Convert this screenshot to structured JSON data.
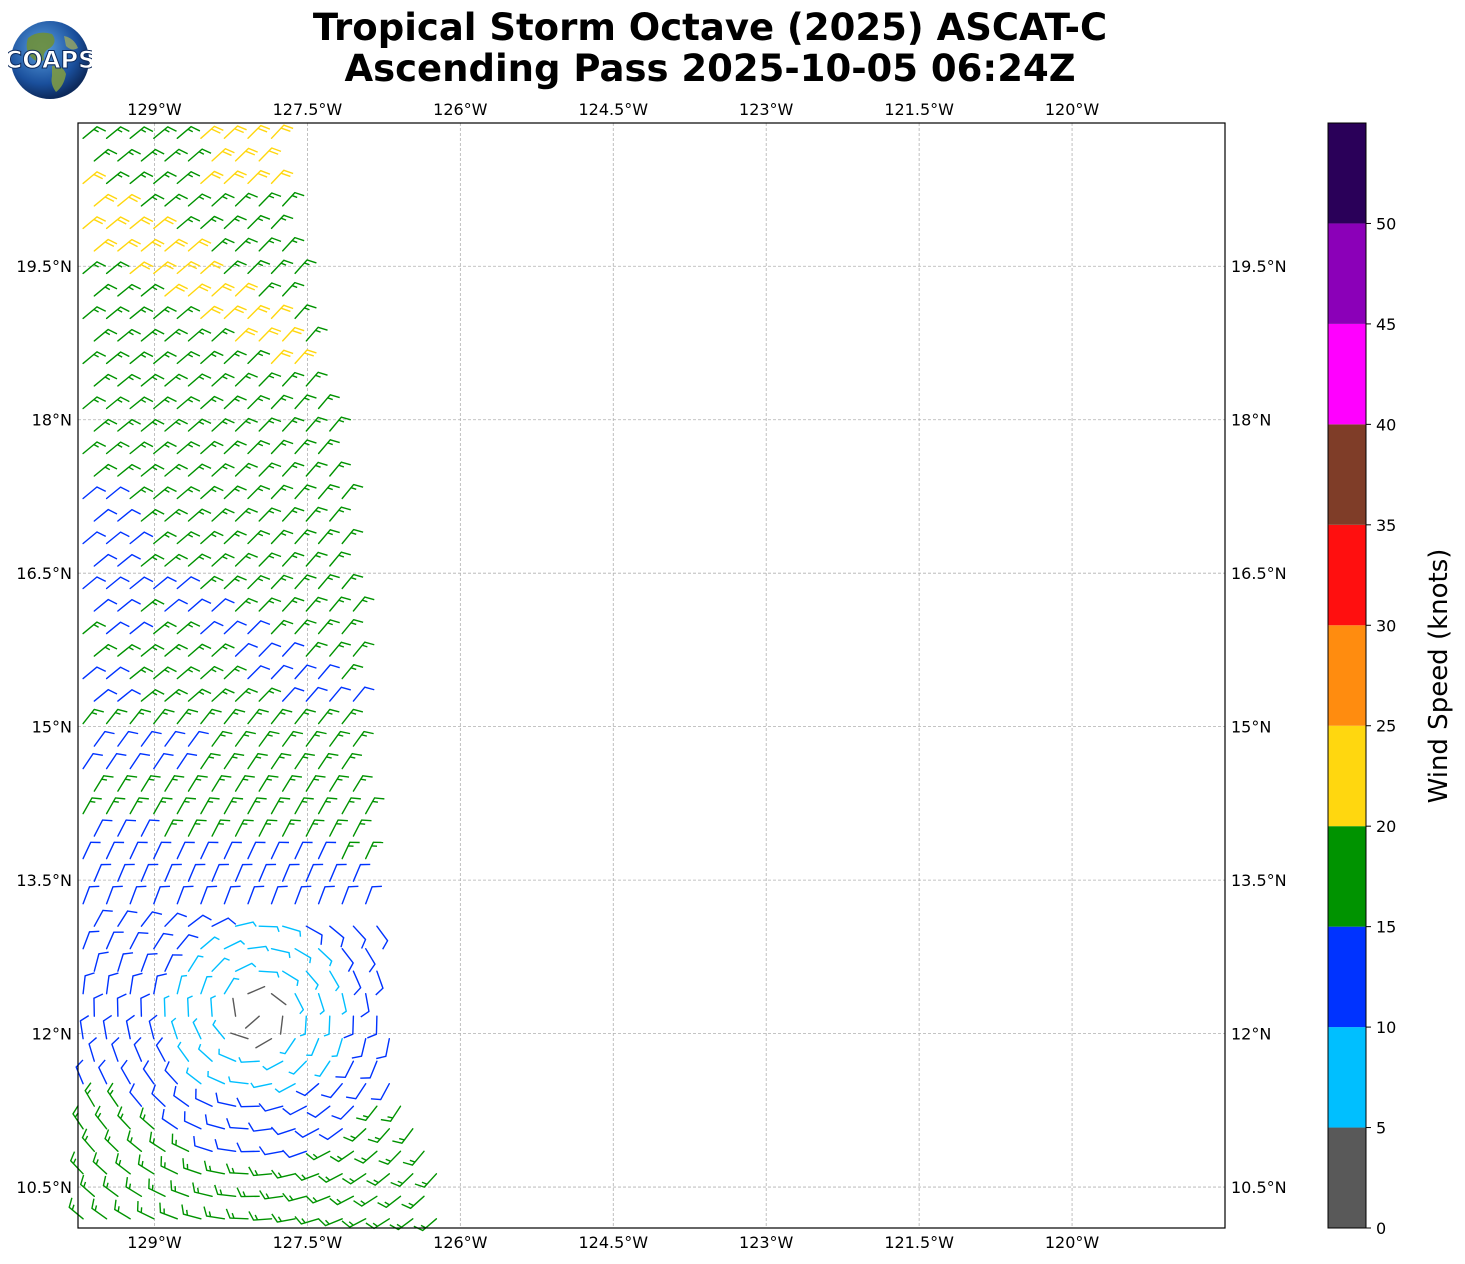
{
  "title": {
    "line1": "Tropical Storm Octave (2025) ASCAT-C",
    "line2": "Ascending Pass 2025-10-05 06:24Z"
  },
  "logo": {
    "text": "COAPS",
    "icon": "globe-logo"
  },
  "map": {
    "lon_range": [
      -129.75,
      -118.5
    ],
    "lat_range": [
      10.1,
      20.9
    ],
    "lon_ticks": [
      "129°W",
      "127.5°W",
      "126°W",
      "124.5°W",
      "123°W",
      "121.5°W",
      "120°W"
    ],
    "lon_tick_values": [
      -129.0,
      -127.5,
      -126.0,
      -124.5,
      -123.0,
      -121.5,
      -120.0
    ],
    "lat_ticks": [
      "19.5°N",
      "18°N",
      "16.5°N",
      "15°N",
      "13.5°N",
      "12°N",
      "10.5°N"
    ],
    "lat_tick_values": [
      19.5,
      18.0,
      16.5,
      15.0,
      13.5,
      12.0,
      10.5
    ],
    "grid": true,
    "swath": {
      "west_lon": -129.75,
      "east_edge": [
        [
          20.7,
          -127.8
        ],
        [
          17.0,
          -127.1
        ],
        [
          14.0,
          -126.9
        ],
        [
          12.0,
          -126.7
        ],
        [
          10.3,
          -126.1
        ]
      ],
      "spacing_deg": 0.22
    }
  },
  "colorbar": {
    "label": "Wind Speed (knots)",
    "ticks": [
      "0",
      "5",
      "10",
      "15",
      "20",
      "25",
      "30",
      "35",
      "40",
      "45",
      "50"
    ],
    "bins": [
      {
        "min": 0,
        "max": 5,
        "color": "#595959"
      },
      {
        "min": 5,
        "max": 10,
        "color": "#00bfff"
      },
      {
        "min": 10,
        "max": 15,
        "color": "#0033ff"
      },
      {
        "min": 15,
        "max": 20,
        "color": "#009300"
      },
      {
        "min": 20,
        "max": 25,
        "color": "#ffd70f"
      },
      {
        "min": 25,
        "max": 30,
        "color": "#ff8c0f"
      },
      {
        "min": 30,
        "max": 35,
        "color": "#ff0f0f"
      },
      {
        "min": 35,
        "max": 40,
        "color": "#7f3d28"
      },
      {
        "min": 40,
        "max": 45,
        "color": "#ff00ff"
      },
      {
        "min": 45,
        "max": 50,
        "color": "#8b00b8"
      },
      {
        "min": 50,
        "max": 55,
        "color": "#2a0059"
      }
    ]
  }
}
